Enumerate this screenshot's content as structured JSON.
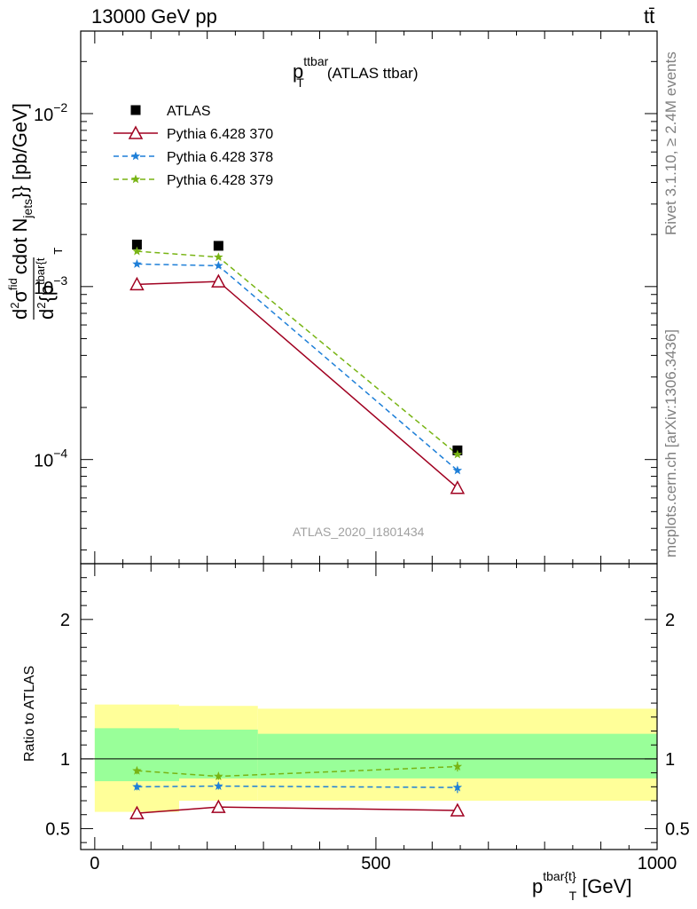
{
  "header": {
    "left": "13000 GeV pp",
    "right": "tt̄"
  },
  "side": {
    "rivet": "Rivet 3.1.10, ≥ 2.4M events",
    "mcplots": "mcplots.cern.ch [arXiv:1306.3436]"
  },
  "panel_title": {
    "main": "p",
    "sup": "ttbar",
    "sub": "T",
    "suffix": "(ATLAS ttbar)"
  },
  "watermark": "ATLAS_2020_I1801434",
  "ylabel_main": {
    "d": "d",
    "d2": "d",
    "sup2a": "2",
    "sigma": "σ",
    "nfid": "fid",
    "sup2b": "2",
    "brace": "{p",
    "tbar": "tbar{t",
    "t": "T",
    "rest": "cdot N",
    "jets": "jets",
    "close": "}} [pb/GeV]"
  },
  "ylabel_ratio": "Ratio to ATLAS",
  "xlabel": {
    "p": "p",
    "sup": "tbar{t}",
    "sub": "T",
    "unit": "[GeV]"
  },
  "chart_data": [
    {
      "type": "line",
      "panel": "main",
      "yscale": "log",
      "xlim": [
        -25,
        1000
      ],
      "ylim": [
        2.5e-05,
        0.03
      ],
      "yticks": [
        {
          "value": 0.01,
          "base": "10",
          "exp": "−2"
        },
        {
          "value": 0.001,
          "base": "10",
          "exp": "−3"
        },
        {
          "value": 0.0001,
          "base": "10",
          "exp": "−4"
        }
      ],
      "legend_position": "top-left",
      "series": [
        {
          "name": "ATLAS",
          "marker": "square",
          "color": "#000000",
          "x": [
            75,
            220,
            645
          ],
          "y": [
            0.00175,
            0.00172,
            0.000113
          ]
        },
        {
          "name": "Pythia 6.428 370",
          "marker": "triangle",
          "color": "#a00020",
          "dash": "",
          "x": [
            75,
            220,
            645
          ],
          "y": [
            0.00103,
            0.00107,
            6.85e-05
          ]
        },
        {
          "name": "Pythia 6.428 378",
          "marker": "star",
          "color": "#1e7fd8",
          "dash": "6,4",
          "x": [
            75,
            220,
            645
          ],
          "y": [
            0.00135,
            0.00132,
            8.65e-05
          ]
        },
        {
          "name": "Pythia 6.428 379",
          "marker": "star",
          "color": "#78b414",
          "dash": "6,4",
          "x": [
            75,
            220,
            645
          ],
          "y": [
            0.0016,
            0.00148,
            0.000107
          ]
        }
      ]
    },
    {
      "type": "line",
      "panel": "ratio",
      "xlim": [
        -25,
        1000
      ],
      "ylim": [
        0.35,
        2.4
      ],
      "yticks": [
        0.5,
        1,
        2
      ],
      "xticks": [
        0,
        500,
        1000
      ],
      "bands": [
        {
          "name": "total uncertainty",
          "color": "#ffff99",
          "bins": [
            [
              0,
              150,
              0.62,
              1.39
            ],
            [
              150,
              290,
              0.7,
              1.38
            ],
            [
              290,
              1000,
              0.7,
              1.36
            ]
          ]
        },
        {
          "name": "stat uncertainty",
          "color": "#99ff99",
          "bins": [
            [
              0,
              150,
              0.84,
              1.22
            ],
            [
              150,
              290,
              0.86,
              1.21
            ],
            [
              290,
              1000,
              0.86,
              1.18
            ]
          ]
        }
      ],
      "series": [
        {
          "name": "Pythia 6.428 370",
          "marker": "triangle",
          "color": "#a00020",
          "dash": "",
          "x": [
            75,
            220,
            645
          ],
          "y": [
            0.61,
            0.655,
            0.63
          ],
          "err": [
            0.015,
            0.015,
            0.03
          ]
        },
        {
          "name": "Pythia 6.428 378",
          "marker": "star",
          "color": "#1e7fd8",
          "dash": "6,4",
          "x": [
            75,
            220,
            645
          ],
          "y": [
            0.8,
            0.805,
            0.795
          ],
          "err": [
            0.025,
            0.025,
            0.04
          ]
        },
        {
          "name": "Pythia 6.428 379",
          "marker": "star",
          "color": "#78b414",
          "dash": "6,4",
          "x": [
            75,
            220,
            645
          ],
          "y": [
            0.915,
            0.875,
            0.945
          ],
          "err": [
            0.025,
            0.025,
            0.035
          ]
        }
      ]
    }
  ]
}
